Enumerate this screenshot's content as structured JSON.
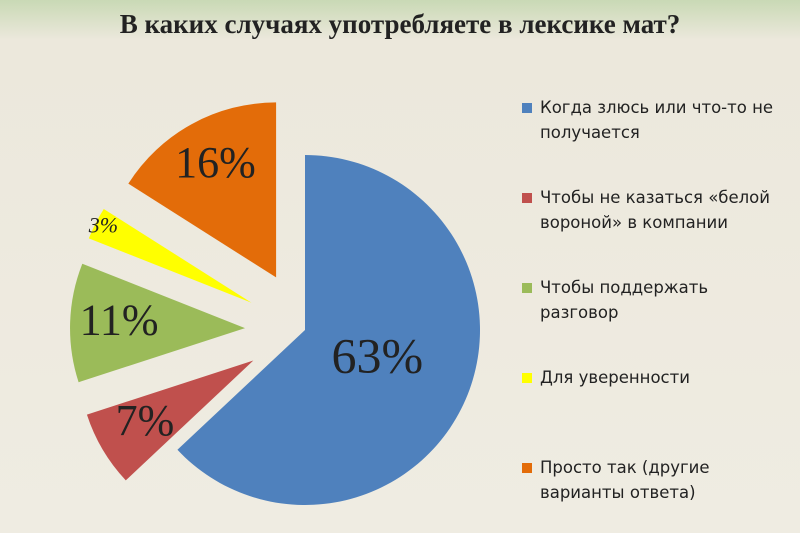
{
  "chart_data": {
    "type": "pie",
    "title": "В каких случаях употребляете в лексике мат?",
    "categories": [
      "Когда злюсь или что-то не получается",
      "Чтобы не казаться «белой вороной» в компании",
      "Чтобы поддержать разговор",
      "Для уверенности",
      "Просто так (другие варианты ответа)"
    ],
    "values": [
      63,
      7,
      11,
      3,
      16
    ],
    "value_labels": [
      "63%",
      "7%",
      "11%",
      "3%",
      "16%"
    ],
    "colors": [
      "#4f81bd",
      "#c0504d",
      "#9bbb59",
      "#ffff00",
      "#e36c09"
    ],
    "legend": "right"
  }
}
